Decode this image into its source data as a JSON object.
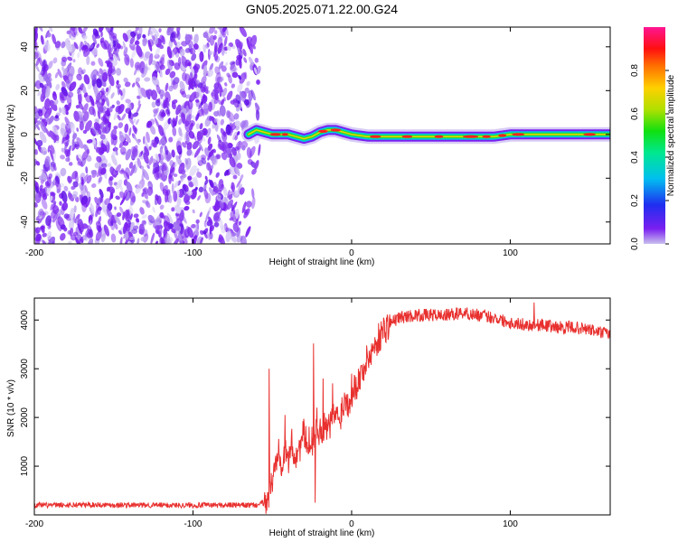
{
  "title": "GN05.2025.071.22.00.G24",
  "colors": {
    "scatter_purple": "#7a1ff0",
    "snr_red": "#e8302e",
    "colorbar_top": "#ff1493",
    "colorbar_bottom": "#b8a8e8"
  },
  "chart_data": [
    {
      "type": "heatmap",
      "xlabel": "Height of straight line (km)",
      "ylabel": "Frequency (Hz)",
      "xlim": [
        -200,
        163
      ],
      "ylim": [
        -50,
        49
      ],
      "xticks": [
        -200,
        -100,
        0,
        100
      ],
      "yticks": [
        -40,
        -20,
        0,
        20,
        40
      ],
      "grid": false,
      "scatter_region": {
        "x_range": [
          -200,
          -58
        ],
        "freq_range": [
          -50,
          49
        ]
      },
      "ridge": {
        "x": [
          -65,
          -60,
          -55,
          -50,
          -45,
          -40,
          -35,
          -30,
          -25,
          -20,
          -15,
          -10,
          -5,
          0,
          10,
          20,
          30,
          40,
          50,
          60,
          70,
          80,
          90,
          100,
          110,
          120,
          130,
          140,
          150,
          163
        ],
        "freq": [
          0,
          2,
          1,
          0,
          0,
          0,
          -1,
          -2,
          -1,
          1,
          2,
          2,
          1,
          0,
          -1,
          -1,
          -1,
          -1,
          -1,
          -1,
          -1,
          -1,
          -1,
          0,
          0,
          0,
          0,
          0,
          0,
          0
        ]
      },
      "colorbar": {
        "label": "Normalized spectral amplitude",
        "range": [
          0,
          1
        ],
        "ticks": [
          0.0,
          0.2,
          0.4,
          0.6,
          0.8
        ]
      }
    },
    {
      "type": "line",
      "xlabel": "Height of straight line (km)",
      "ylabel": "SNR (10 * v/v)",
      "xlim": [
        -200,
        163
      ],
      "ylim": [
        0,
        4450
      ],
      "xticks": [
        -200,
        -100,
        0,
        100
      ],
      "yticks": [
        1000,
        2000,
        3000,
        4000
      ],
      "grid": false,
      "series": [
        {
          "color": "#e8302e",
          "x": [
            -200,
            -180,
            -160,
            -140,
            -120,
            -100,
            -80,
            -60,
            -55,
            -52,
            -50,
            -48,
            -46,
            -44,
            -42,
            -40,
            -38,
            -36,
            -34,
            -32,
            -30,
            -28,
            -26,
            -24,
            -22,
            -20,
            -18,
            -16,
            -14,
            -12,
            -10,
            -8,
            -6,
            -4,
            -2,
            0,
            5,
            10,
            15,
            20,
            25,
            30,
            40,
            50,
            60,
            70,
            80,
            90,
            100,
            110,
            120,
            130,
            140,
            150,
            163
          ],
          "y": [
            200,
            200,
            210,
            200,
            200,
            200,
            200,
            200,
            250,
            400,
            700,
            1000,
            1500,
            1050,
            1250,
            1100,
            1500,
            1200,
            1300,
            1450,
            1700,
            1350,
            1600,
            1500,
            1900,
            1700,
            1800,
            1750,
            1800,
            2000,
            2100,
            1900,
            2200,
            2400,
            2300,
            2500,
            2800,
            3200,
            3500,
            3800,
            3950,
            4050,
            4100,
            4100,
            4100,
            4150,
            4100,
            4050,
            3950,
            3900,
            3900,
            3850,
            3850,
            3800,
            3700
          ],
          "spikes": [
            {
              "x": -52,
              "y": 3000
            },
            {
              "x": -42,
              "y": 2050
            },
            {
              "x": -24,
              "y": 3520
            },
            {
              "x": -23,
              "y": 250
            },
            {
              "x": -18,
              "y": 2800
            },
            {
              "x": -12,
              "y": 2700
            },
            {
              "x": 0,
              "y": 2900
            },
            {
              "x": 115,
              "y": 4360
            }
          ]
        }
      ]
    }
  ]
}
